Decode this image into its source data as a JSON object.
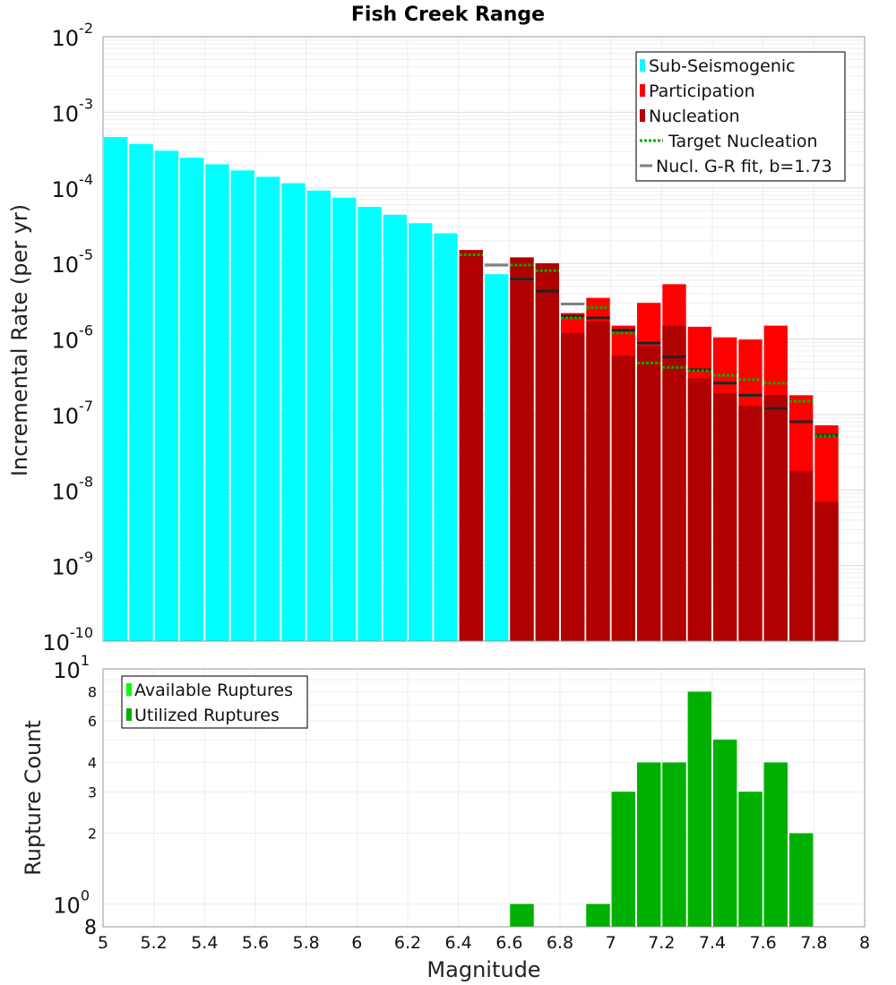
{
  "chart_data": [
    {
      "type": "bar",
      "title": "Fish Creek Range",
      "xlabel": "",
      "ylabel": "Incremental Rate (per yr)",
      "yscale": "log",
      "ylim": [
        1e-10,
        0.01
      ],
      "xlim": [
        5,
        8
      ],
      "y_tick_labels": [
        {
          "base": "10",
          "exp": "-10",
          "value": 1e-10
        },
        {
          "base": "10",
          "exp": "-9",
          "value": 1e-09
        },
        {
          "base": "10",
          "exp": "-8",
          "value": 1e-08
        },
        {
          "base": "10",
          "exp": "-7",
          "value": 1e-07
        },
        {
          "base": "10",
          "exp": "-6",
          "value": 1e-06
        },
        {
          "base": "10",
          "exp": "-5",
          "value": 1e-05
        },
        {
          "base": "10",
          "exp": "-4",
          "value": 0.0001
        },
        {
          "base": "10",
          "exp": "-3",
          "value": 0.001
        },
        {
          "base": "10",
          "exp": "-2",
          "value": 0.01
        }
      ],
      "legend_position": "top-right",
      "legend": [
        "Sub-Seismogenic",
        "Participation",
        "Nucleation",
        "Target Nucleation",
        "Nucl. G-R fit, b=1.73"
      ],
      "colors": {
        "sub_seismogenic": "#00ffff",
        "participation": "#ff0000",
        "nucleation": "#b00000",
        "target": "#00b000",
        "gr_fit": "#808080",
        "mean_line": "#222222"
      },
      "series": [
        {
          "name": "Sub-Seismogenic",
          "x": [
            5.05,
            5.15,
            5.25,
            5.35,
            5.45,
            5.55,
            5.65,
            5.75,
            5.85,
            5.95,
            6.05,
            6.15,
            6.25,
            6.35,
            6.55
          ],
          "values": [
            0.00047,
            0.00038,
            0.00031,
            0.00025,
            0.000205,
            0.00017,
            0.00014,
            0.000115,
            9.2e-05,
            7.4e-05,
            5.6e-05,
            4.4e-05,
            3.4e-05,
            2.5e-05,
            7.2e-06
          ]
        },
        {
          "name": "Participation",
          "x": [
            6.45,
            6.65,
            6.75,
            6.85,
            6.95,
            7.05,
            7.15,
            7.25,
            7.35,
            7.45,
            7.55,
            7.65,
            7.75,
            7.85
          ],
          "values": [
            1.5e-05,
            1.2e-05,
            1e-05,
            2.2e-06,
            3.5e-06,
            1.5e-06,
            3e-06,
            5.3e-06,
            1.45e-06,
            1.05e-06,
            9.8e-07,
            1.5e-06,
            1.8e-07,
            7.2e-08
          ]
        },
        {
          "name": "Nucleation",
          "x": [
            6.45,
            6.65,
            6.75,
            6.85,
            6.95,
            7.05,
            7.15,
            7.25,
            7.35,
            7.45,
            7.55,
            7.65,
            7.75,
            7.85
          ],
          "values": [
            1.5e-05,
            1.2e-05,
            1e-05,
            1.2e-06,
            1.7e-06,
            6e-07,
            8e-07,
            1.5e-06,
            3e-07,
            1.9e-07,
            1.3e-07,
            1.8e-07,
            1.8e-08,
            7e-09
          ]
        },
        {
          "name": "Target Nucleation",
          "x": [
            6.45,
            6.65,
            6.75,
            6.85,
            6.95,
            7.05,
            7.15,
            7.25,
            7.35,
            7.45,
            7.55,
            7.65,
            7.75,
            7.85
          ],
          "values": [
            1.3e-05,
            9.5e-06,
            8e-06,
            1.9e-06,
            2.6e-06,
            1.2e-06,
            4.8e-07,
            4.2e-07,
            3.8e-07,
            3.3e-07,
            2.9e-07,
            2.6e-07,
            1.5e-07,
            5.2e-08
          ]
        },
        {
          "name": "Nucl. G-R fit, b=1.73",
          "x": [
            6.55,
            6.65,
            6.75,
            6.85,
            6.95,
            7.05,
            7.15,
            7.25,
            7.35,
            7.45,
            7.55,
            7.65,
            7.75,
            7.85
          ],
          "values": [
            9.5e-06,
            6.2e-06,
            4.3e-06,
            2.9e-06,
            1.9e-06,
            1.3e-06,
            8.8e-07,
            5.8e-07,
            3.9e-07,
            2.6e-07,
            1.8e-07,
            1.2e-07,
            8e-08,
            5.3e-08
          ]
        },
        {
          "name": "Nucleation mean",
          "x": [
            6.65,
            6.75,
            6.85,
            6.95,
            7.05,
            7.15,
            7.25,
            7.35,
            7.45,
            7.55,
            7.65,
            7.75,
            7.85
          ],
          "values": [
            6.2e-06,
            4.3e-06,
            2e-06,
            1.9e-06,
            1.3e-06,
            8.8e-07,
            5.8e-07,
            3.9e-07,
            2.6e-07,
            1.8e-07,
            1.2e-07,
            8e-08,
            5.3e-08
          ]
        }
      ]
    },
    {
      "type": "bar",
      "title": "",
      "xlabel": "Magnitude",
      "ylabel": "Rupture Count",
      "yscale": "log",
      "ylim": [
        0.8,
        10
      ],
      "xlim": [
        5,
        8
      ],
      "x_ticks": [
        "5",
        "5.2",
        "5.4",
        "5.6",
        "5.8",
        "6",
        "6.2",
        "6.4",
        "6.6",
        "6.8",
        "7",
        "7.2",
        "7.4",
        "7.6",
        "7.8",
        "8"
      ],
      "y_tick_labels": [
        {
          "base": "10",
          "exp": "0",
          "value": 1
        },
        {
          "base": "10",
          "exp": "1",
          "value": 10
        }
      ],
      "y_minor_labels": [
        {
          "label": "8",
          "value": 0.8
        },
        {
          "label": "2",
          "value": 2
        },
        {
          "label": "3",
          "value": 3
        },
        {
          "label": "4",
          "value": 4
        },
        {
          "label": "6",
          "value": 6
        },
        {
          "label": "8",
          "value": 8
        }
      ],
      "legend_position": "top-left",
      "legend": [
        "Available Ruptures",
        "Utilized Ruptures"
      ],
      "colors": {
        "available": "#00ff00",
        "utilized": "#00b000"
      },
      "series": [
        {
          "name": "Available Ruptures",
          "x": [
            6.65,
            6.95,
            7.05,
            7.15,
            7.25,
            7.35,
            7.45,
            7.55,
            7.65,
            7.75
          ],
          "values": [
            1,
            1,
            3,
            4,
            4,
            8,
            5,
            3,
            4,
            2
          ]
        },
        {
          "name": "Utilized Ruptures",
          "x": [
            6.65,
            6.95,
            7.05,
            7.15,
            7.25,
            7.35,
            7.45,
            7.55,
            7.65,
            7.75
          ],
          "values": [
            1,
            1,
            3,
            4,
            4,
            8,
            5,
            3,
            4,
            2
          ]
        }
      ]
    }
  ]
}
